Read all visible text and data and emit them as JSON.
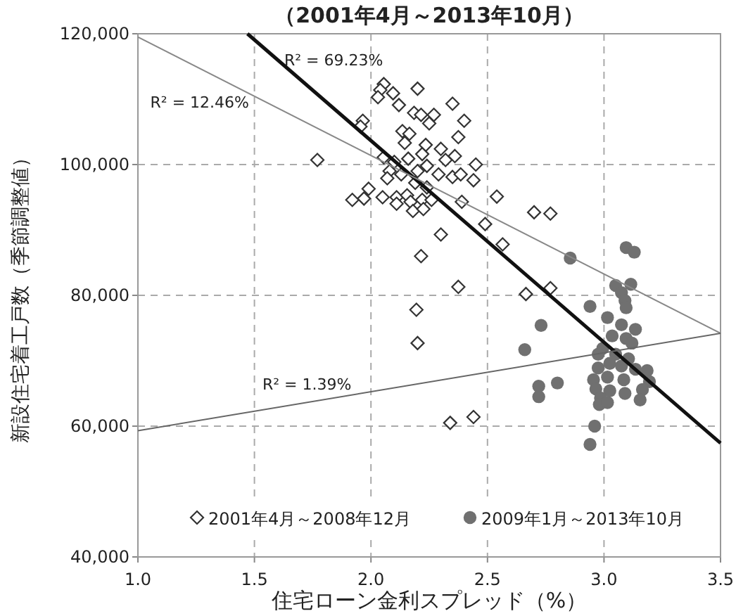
{
  "chart_data": {
    "type": "scatter",
    "title": "（2001年4月～2013年10月）",
    "xlabel": "住宅ローン金利スプレッド（%）",
    "ylabel": "新設住宅着工戸数（季節調整値）",
    "xlim": [
      1,
      3.5
    ],
    "ylim": [
      40000,
      120000
    ],
    "xticks": [
      {
        "value": 1,
        "label": "1.0"
      },
      {
        "value": 1.5,
        "label": "1.5"
      },
      {
        "value": 2,
        "label": "2.0"
      },
      {
        "value": 2.5,
        "label": "2.5"
      },
      {
        "value": 3,
        "label": "3.0"
      },
      {
        "value": 3.5,
        "label": "3.5"
      }
    ],
    "yticks": [
      {
        "value": 40000,
        "label": "40,000"
      },
      {
        "value": 60000,
        "label": "60,000"
      },
      {
        "value": 80000,
        "label": "80,000"
      },
      {
        "value": 100000,
        "label": "100,000"
      },
      {
        "value": 120000,
        "label": "120,000"
      }
    ],
    "grid": true,
    "legend": "bottom",
    "annotations": [
      "R² = 69.23%",
      "R² = 12.46%",
      "R² = 1.39%"
    ],
    "series": [
      {
        "name": "2001年4月～2008年12月",
        "marker": "diamond",
        "color": "#333333",
        "x": [
          2.055,
          2.04,
          2.03,
          2.095,
          2.2,
          2.12,
          2.35,
          2.185,
          2.215,
          2.27,
          2.25,
          2.4,
          1.965,
          1.955,
          2.135,
          2.165,
          2.375,
          2.145,
          2.235,
          2.3,
          2.36,
          2.22,
          2.32,
          2.45,
          1.77,
          2.055,
          2.1,
          2.16,
          2.24,
          2.08,
          2.13,
          2.2,
          2.29,
          2.35,
          2.385,
          2.44,
          2.07,
          2.19,
          2.24,
          1.99,
          1.92,
          1.97,
          2.05,
          2.11,
          2.155,
          2.17,
          2.22,
          2.26,
          2.11,
          2.18,
          2.225,
          2.39,
          2.3,
          2.215,
          2.375,
          2.195,
          2.2,
          2.34,
          2.44,
          2.54,
          2.7,
          2.77,
          2.49,
          2.565,
          2.665,
          2.77
        ],
        "values": [
          112300,
          111400,
          110300,
          110900,
          111600,
          109100,
          109300,
          107900,
          107600,
          107600,
          106300,
          106700,
          106700,
          105800,
          105100,
          104700,
          104200,
          103300,
          103000,
          102400,
          101300,
          101600,
          100700,
          100000,
          100700,
          101100,
          100400,
          100900,
          99800,
          99000,
          98500,
          99000,
          98500,
          98100,
          98500,
          97600,
          97900,
          97200,
          96500,
          96300,
          94600,
          94800,
          95000,
          95000,
          95300,
          94300,
          94600,
          94600,
          94000,
          92900,
          93200,
          94300,
          89300,
          86000,
          81300,
          77800,
          72700,
          60500,
          61400,
          95100,
          92700,
          92500,
          90900,
          87800,
          80200,
          81100
        ]
      },
      {
        "name": "2009年1月～2013年10月",
        "marker": "circle",
        "color": "#707070",
        "x": [
          3.095,
          3.13,
          2.855,
          3.05,
          3.115,
          3.075,
          3.09,
          3.095,
          2.94,
          3.015,
          3.075,
          3.135,
          2.73,
          3.035,
          3.095,
          3.12,
          2.995,
          2.66,
          2.975,
          3.05,
          3.105,
          3.025,
          2.975,
          3.075,
          3.135,
          3.185,
          3.015,
          3.085,
          2.955,
          2.8,
          3.195,
          2.72,
          2.965,
          3.165,
          3.025,
          2.72,
          2.985,
          3.09,
          3.155,
          2.98,
          3.015,
          2.96,
          2.94
        ],
        "values": [
          87300,
          86600,
          85700,
          81500,
          81700,
          80400,
          79200,
          78100,
          78300,
          76600,
          75500,
          74800,
          75400,
          73800,
          73400,
          72700,
          71900,
          71700,
          71000,
          71000,
          70300,
          69600,
          68900,
          69200,
          68700,
          68500,
          67500,
          67100,
          67100,
          66600,
          66800,
          66100,
          65700,
          65600,
          65400,
          64500,
          64300,
          65000,
          64000,
          63300,
          63600,
          60000,
          57200
        ]
      },
      {
        "type": "line",
        "color": "#111111",
        "x": [
          1.47,
          3.5
        ],
        "values": [
          120000,
          57400
        ]
      },
      {
        "type": "line",
        "color": "#888888",
        "x": [
          1.0,
          3.5
        ],
        "values": [
          119500,
          74200
        ]
      },
      {
        "type": "line",
        "color": "#666666",
        "x": [
          1.0,
          3.5
        ],
        "values": [
          59300,
          74200
        ]
      }
    ]
  }
}
